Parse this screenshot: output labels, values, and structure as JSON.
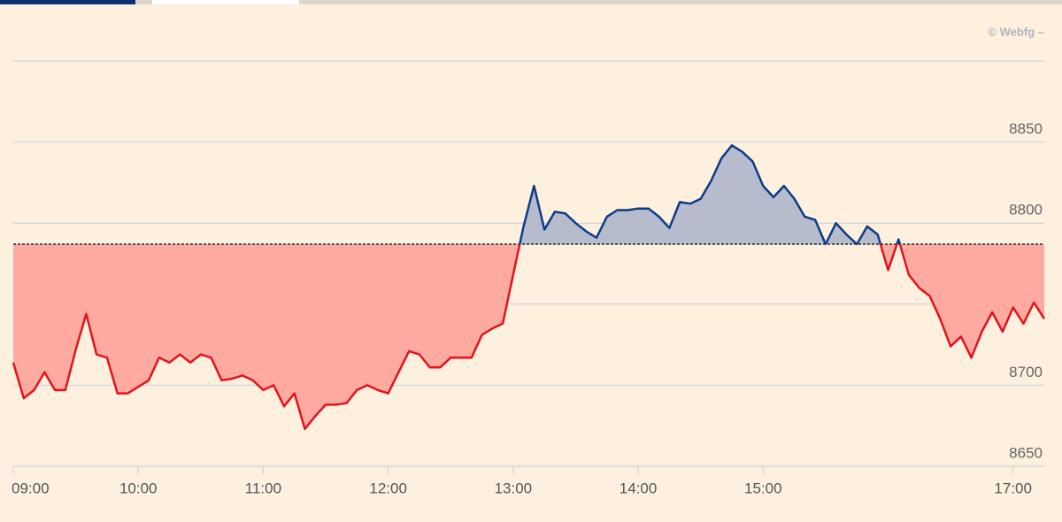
{
  "chart_data": {
    "type": "line",
    "source": "© Webfg –",
    "x": [
      540,
      545,
      550,
      555,
      560,
      565,
      570,
      575,
      580,
      585,
      590,
      595,
      600,
      605,
      610,
      615,
      620,
      625,
      630,
      635,
      640,
      645,
      650,
      655,
      660,
      665,
      670,
      675,
      680,
      685,
      690,
      695,
      700,
      705,
      710,
      715,
      720,
      725,
      730,
      735,
      740,
      745,
      750,
      755,
      760,
      765,
      770,
      775,
      780,
      785,
      790,
      795,
      800,
      805,
      810,
      815,
      820,
      825,
      830,
      835,
      840,
      845,
      850,
      855,
      860,
      865,
      870,
      875,
      880,
      885,
      890,
      895,
      900,
      905,
      910,
      915,
      920,
      925,
      930,
      935,
      940,
      945,
      950,
      955,
      960,
      965,
      970,
      975,
      980,
      985,
      990,
      995,
      1000,
      1005,
      1010,
      1015,
      1020,
      1025,
      1030,
      1035
    ],
    "values": [
      8714,
      8692,
      8697,
      8708,
      8697,
      8697,
      8722,
      8744,
      8719,
      8717,
      8695,
      8695,
      8699,
      8703,
      8717,
      8714,
      8719,
      8714,
      8719,
      8717,
      8703,
      8704,
      8706,
      8703,
      8697,
      8700,
      8687,
      8695,
      8673,
      8681,
      8688,
      8688,
      8689,
      8697,
      8700,
      8697,
      8695,
      8708,
      8721,
      8719,
      8711,
      8711,
      8717,
      8717,
      8717,
      8731,
      8735,
      8738,
      8768,
      8798,
      8823,
      8796,
      8807,
      8806,
      8800,
      8795,
      8791,
      8804,
      8808,
      8808,
      8809,
      8809,
      8804,
      8797,
      8813,
      8812,
      8815,
      8826,
      8840,
      8848,
      8844,
      8838,
      8823,
      8816,
      8823,
      8815,
      8804,
      8802,
      8787,
      8800,
      8793,
      8787,
      8798,
      8793,
      8771,
      8790,
      8768,
      8760,
      8755,
      8741,
      8724,
      8730,
      8717,
      8733,
      8745,
      8733,
      8748,
      8738,
      8751,
      8741
    ],
    "baseline": 8787,
    "up_color": "#0d3b8a",
    "up_fill": "#b6bccb",
    "down_color": "#e0141e",
    "down_fill": "#ffaaa0",
    "xlim": [
      540,
      1035
    ],
    "xticks": [
      {
        "value": 540,
        "label": "09:00"
      },
      {
        "value": 600,
        "label": "10:00"
      },
      {
        "value": 660,
        "label": "11:00"
      },
      {
        "value": 720,
        "label": "12:00"
      },
      {
        "value": 780,
        "label": "13:00"
      },
      {
        "value": 840,
        "label": "14:00"
      },
      {
        "value": 900,
        "label": "15:00"
      },
      {
        "value": 1020,
        "label": "17:00"
      }
    ],
    "ylim": [
      8650,
      8900
    ],
    "yticks": [
      8650,
      8700,
      8750,
      8800,
      8850
    ],
    "grid": true
  }
}
